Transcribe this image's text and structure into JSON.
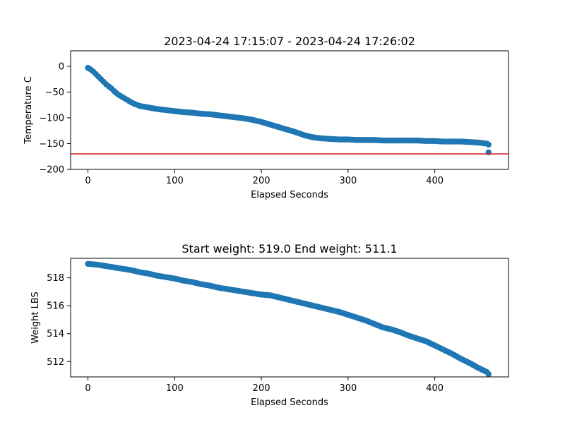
{
  "chart_data": [
    {
      "type": "scatter",
      "title": "2023-04-24 17:15:07 - 2023-04-24 17:26:02",
      "xlabel": "Elapsed Seconds",
      "ylabel": "Temperature C",
      "xlim": [
        -20,
        485
      ],
      "ylim": [
        -200,
        30
      ],
      "xticks": [
        0,
        100,
        200,
        300,
        400
      ],
      "yticks": [
        0,
        -50,
        -100,
        -150,
        -200
      ],
      "marker_color": "#1f77b4",
      "reference_line": {
        "y": -170,
        "color": "#d62728"
      },
      "series": [
        {
          "x": [
            0,
            3,
            6,
            9,
            12,
            15,
            18,
            21,
            24,
            27,
            30,
            35,
            40,
            45,
            50,
            55,
            60,
            70,
            80,
            90,
            100,
            110,
            120,
            130,
            140,
            150,
            160,
            170,
            180,
            190,
            200,
            210,
            220,
            230,
            240,
            250,
            260,
            270,
            280,
            290,
            300,
            310,
            320,
            330,
            340,
            350,
            360,
            370,
            380,
            390,
            400,
            410,
            420,
            430,
            440,
            450,
            455,
            460,
            462,
            462
          ],
          "y": [
            -3,
            -6,
            -10,
            -15,
            -20,
            -25,
            -30,
            -35,
            -39,
            -43,
            -48,
            -55,
            -60,
            -65,
            -70,
            -74,
            -77,
            -80,
            -83,
            -85,
            -87,
            -89,
            -90,
            -92,
            -93,
            -95,
            -97,
            -99,
            -101,
            -104,
            -108,
            -113,
            -118,
            -123,
            -128,
            -134,
            -138,
            -140,
            -141,
            -142,
            -142,
            -143,
            -143,
            -143,
            -144,
            -144,
            -144,
            -144,
            -144,
            -145,
            -145,
            -146,
            -146,
            -146,
            -147,
            -148,
            -149,
            -150,
            -152,
            -167
          ]
        }
      ]
    },
    {
      "type": "scatter",
      "title": "Start weight: 519.0 End weight: 511.1",
      "xlabel": "Elapsed Seconds",
      "ylabel": "Weight LBS",
      "xlim": [
        -20,
        485
      ],
      "ylim": [
        510.9,
        519.4
      ],
      "xticks": [
        0,
        100,
        200,
        300,
        400
      ],
      "yticks": [
        512,
        514,
        516,
        518
      ],
      "marker_color": "#1f77b4",
      "series": [
        {
          "x": [
            0,
            10,
            20,
            30,
            40,
            50,
            60,
            70,
            80,
            90,
            100,
            110,
            120,
            130,
            140,
            150,
            160,
            170,
            180,
            190,
            200,
            210,
            220,
            230,
            240,
            250,
            260,
            270,
            280,
            290,
            300,
            310,
            320,
            330,
            340,
            350,
            360,
            370,
            380,
            390,
            400,
            410,
            420,
            430,
            440,
            450,
            460,
            462
          ],
          "y": [
            519.0,
            518.95,
            518.85,
            518.75,
            518.65,
            518.55,
            518.4,
            518.3,
            518.15,
            518.05,
            517.95,
            517.8,
            517.7,
            517.55,
            517.45,
            517.3,
            517.2,
            517.1,
            517.0,
            516.9,
            516.8,
            516.75,
            516.6,
            516.45,
            516.3,
            516.15,
            516.0,
            515.85,
            515.7,
            515.55,
            515.35,
            515.15,
            514.95,
            514.7,
            514.45,
            514.3,
            514.1,
            513.85,
            513.65,
            513.45,
            513.15,
            512.85,
            512.55,
            512.2,
            511.9,
            511.55,
            511.25,
            511.1
          ]
        }
      ]
    }
  ]
}
